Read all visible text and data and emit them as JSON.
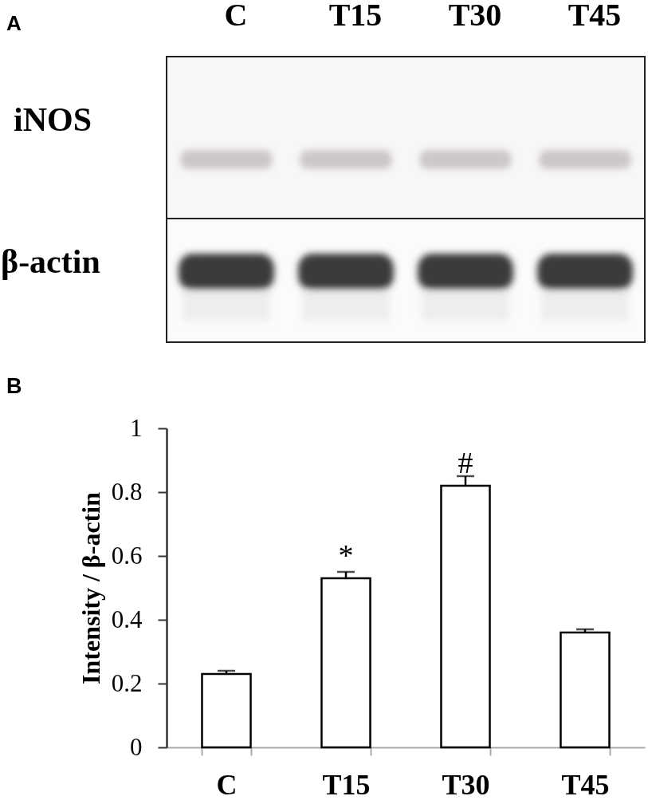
{
  "chart_data": [
    {
      "type": "other",
      "title": "A",
      "categories": [
        "C",
        "T15",
        "T30",
        "T45"
      ],
      "annotations": [
        "iNOS",
        "β-actin"
      ]
    },
    {
      "type": "bar",
      "title": "B",
      "categories": [
        "C",
        "T15",
        "T30",
        "T45"
      ],
      "values": [
        0.23,
        0.53,
        0.82,
        0.36
      ],
      "errors": [
        0.01,
        0.02,
        0.03,
        0.01
      ],
      "color": "#ffffff",
      "ylabel": "Intensity / β-actin",
      "ylim": [
        0,
        1
      ],
      "yticks": [
        0,
        0.2,
        0.4,
        0.6,
        0.8,
        1
      ],
      "annotations": [
        {
          "text": "*",
          "x": "T15",
          "y": 0.53
        },
        {
          "text": "#",
          "x": "T30",
          "y": 0.82
        }
      ]
    }
  ]
}
